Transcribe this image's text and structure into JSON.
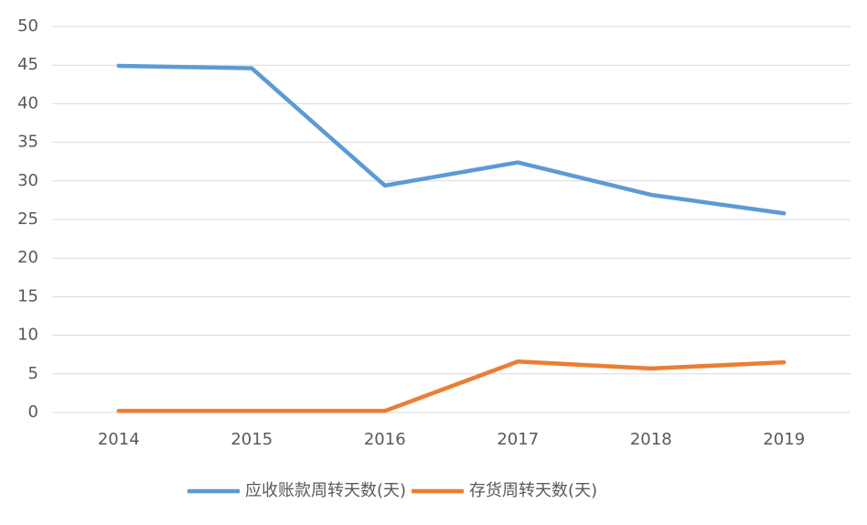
{
  "chart_data": {
    "type": "line",
    "categories": [
      "2014",
      "2015",
      "2016",
      "2017",
      "2018",
      "2019"
    ],
    "series": [
      {
        "name": "应收账款周转天数(天)",
        "color": "#5b9bd5",
        "values": [
          44.9,
          44.6,
          29.4,
          32.4,
          28.2,
          25.8
        ]
      },
      {
        "name": "存货周转天数(天)",
        "color": "#ed7d31",
        "values": [
          0.2,
          0.2,
          0.2,
          6.6,
          5.7,
          6.5
        ]
      }
    ],
    "ylim": [
      0,
      50
    ],
    "yticks": [
      0,
      5,
      10,
      15,
      20,
      25,
      30,
      35,
      40,
      45,
      50
    ],
    "grid": true,
    "legend": "bottom"
  }
}
